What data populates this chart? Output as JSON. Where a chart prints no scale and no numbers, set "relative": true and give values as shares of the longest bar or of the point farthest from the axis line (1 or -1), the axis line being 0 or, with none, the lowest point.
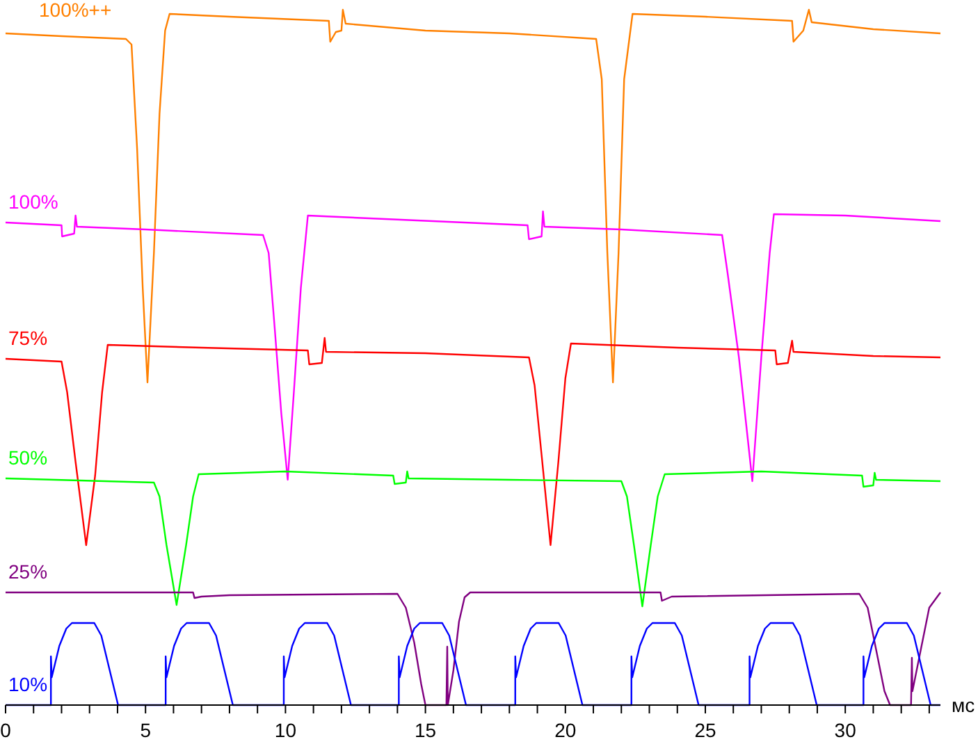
{
  "chart_data": {
    "type": "line",
    "relative": true,
    "xlabel": "мс",
    "xlim": [
      0,
      33.4
    ],
    "xticks": [
      0,
      {
        "value": 1,
        "label": null
      },
      {
        "value": 2,
        "label": null
      },
      {
        "value": 3,
        "label": null
      },
      {
        "value": 4,
        "label": null
      },
      5,
      {
        "value": 6,
        "label": null
      },
      {
        "value": 7,
        "label": null
      },
      {
        "value": 8,
        "label": null
      },
      {
        "value": 9,
        "label": null
      },
      10,
      {
        "value": 11,
        "label": null
      },
      {
        "value": 12,
        "label": null
      },
      {
        "value": 13,
        "label": null
      },
      {
        "value": 14,
        "label": null
      },
      15,
      {
        "value": 16,
        "label": null
      },
      {
        "value": 17,
        "label": null
      },
      {
        "value": 18,
        "label": null
      },
      {
        "value": 19,
        "label": null
      },
      20,
      {
        "value": 21,
        "label": null
      },
      {
        "value": 22,
        "label": null
      },
      {
        "value": 23,
        "label": null
      },
      {
        "value": 24,
        "label": null
      },
      25,
      {
        "value": 26,
        "label": null
      },
      {
        "value": 27,
        "label": null
      },
      {
        "value": 28,
        "label": null
      },
      {
        "value": 29,
        "label": null
      },
      30,
      {
        "value": 31,
        "label": null
      },
      {
        "value": 32,
        "label": null
      },
      {
        "value": 33,
        "label": null
      }
    ],
    "grid": false,
    "legend": false,
    "marker": "none",
    "line_style": "solid",
    "series": [
      {
        "name": "100%++",
        "color": "#ff8000",
        "x": [
          0,
          2,
          4.3,
          4.5,
          4.7,
          4.9,
          5.07,
          5.3,
          5.5,
          5.7,
          5.86,
          8,
          11.55,
          11.6,
          11.8,
          12.0,
          12.05,
          12.15,
          15,
          18,
          21.1,
          21.3,
          21.5,
          21.7,
          21.9,
          22.1,
          22.4,
          25,
          28.1,
          28.15,
          28.5,
          28.7,
          28.8,
          31,
          33.4
        ],
        "values": [
          0.966,
          0.962,
          0.958,
          0.95,
          0.8,
          0.6,
          0.464,
          0.65,
          0.85,
          0.97,
          0.994,
          0.99,
          0.984,
          0.954,
          0.968,
          0.97,
          1.0,
          0.98,
          0.97,
          0.966,
          0.958,
          0.9,
          0.65,
          0.464,
          0.65,
          0.9,
          0.994,
          0.99,
          0.984,
          0.954,
          0.97,
          1.0,
          0.982,
          0.972,
          0.966
        ]
      },
      {
        "name": "100%",
        "color": "#ff00ff",
        "x": [
          0,
          2.0,
          2.02,
          2.45,
          2.5,
          2.55,
          5,
          9.2,
          9.4,
          9.6,
          9.85,
          10.08,
          10.3,
          10.55,
          10.8,
          13,
          18.65,
          18.7,
          19.15,
          19.2,
          19.25,
          22,
          25.6,
          25.8,
          26.2,
          26.68,
          27.0,
          27.3,
          27.45,
          30,
          33.4
        ],
        "values": [
          0.694,
          0.69,
          0.674,
          0.678,
          0.704,
          0.688,
          0.684,
          0.676,
          0.65,
          0.55,
          0.42,
          0.324,
          0.45,
          0.6,
          0.704,
          0.7,
          0.69,
          0.67,
          0.674,
          0.71,
          0.688,
          0.684,
          0.676,
          0.62,
          0.5,
          0.322,
          0.5,
          0.65,
          0.706,
          0.704,
          0.696
        ]
      },
      {
        "name": "75%",
        "color": "#ff0000",
        "x": [
          0,
          2.0,
          2.2,
          2.5,
          2.88,
          3.2,
          3.45,
          3.65,
          7,
          10.8,
          10.85,
          11.3,
          11.4,
          11.45,
          15,
          18.7,
          18.9,
          19.15,
          19.47,
          19.75,
          20,
          20.2,
          24,
          27.5,
          27.55,
          27.95,
          28.1,
          28.15,
          31,
          33.4
        ],
        "values": [
          0.498,
          0.494,
          0.45,
          0.35,
          0.23,
          0.33,
          0.45,
          0.518,
          0.514,
          0.51,
          0.49,
          0.492,
          0.528,
          0.508,
          0.506,
          0.5,
          0.46,
          0.36,
          0.23,
          0.35,
          0.47,
          0.52,
          0.514,
          0.51,
          0.49,
          0.492,
          0.524,
          0.508,
          0.502,
          0.5
        ]
      },
      {
        "name": "50%",
        "color": "#00ff00",
        "x": [
          0,
          5.3,
          5.5,
          5.75,
          6.11,
          6.45,
          6.7,
          6.9,
          10,
          13.85,
          13.9,
          14.3,
          14.35,
          14.4,
          18,
          22.0,
          22.2,
          22.45,
          22.75,
          23.05,
          23.3,
          23.55,
          27,
          30.6,
          30.65,
          31.0,
          31.05,
          31.1,
          33.4
        ],
        "values": [
          0.326,
          0.32,
          0.3,
          0.23,
          0.144,
          0.23,
          0.3,
          0.332,
          0.336,
          0.33,
          0.318,
          0.32,
          0.336,
          0.326,
          0.324,
          0.322,
          0.3,
          0.23,
          0.142,
          0.23,
          0.3,
          0.332,
          0.336,
          0.33,
          0.314,
          0.316,
          0.334,
          0.324,
          0.322
        ]
      },
      {
        "name": "25%",
        "color": "#800080",
        "x": [
          0,
          6.7,
          6.75,
          7,
          8,
          14.0,
          14.3,
          14.6,
          14.85,
          15.0,
          15.75,
          15.78,
          15.8,
          16.0,
          16.2,
          16.4,
          16.6,
          23.4,
          23.45,
          23.8,
          30.5,
          30.8,
          31.1,
          31.4,
          31.6,
          32.35,
          32.38,
          32.4,
          32.7,
          33.0,
          33.4
        ],
        "values": [
          0.162,
          0.162,
          0.154,
          0.156,
          0.158,
          0.16,
          0.14,
          0.09,
          0.03,
          0,
          0,
          0.084,
          0,
          0.05,
          0.12,
          0.155,
          0.162,
          0.162,
          0.15,
          0.156,
          0.16,
          0.14,
          0.08,
          0.02,
          0,
          0,
          0.068,
          0.02,
          0.08,
          0.14,
          0.162
        ]
      },
      {
        "name": "10%",
        "color": "#0000ff",
        "x": [
          0,
          1.62,
          1.62,
          1.65,
          1.92,
          2.17,
          2.37,
          3.17,
          3.42,
          3.72,
          4.02,
          5.72,
          5.72,
          5.75,
          6.02,
          6.27,
          6.47,
          7.27,
          7.52,
          7.82,
          8.12,
          9.94,
          9.94,
          9.97,
          10.24,
          10.49,
          10.69,
          11.49,
          11.74,
          12.04,
          12.34,
          14.05,
          14.05,
          14.08,
          14.35,
          14.6,
          14.8,
          15.6,
          15.85,
          16.15,
          16.45,
          18.21,
          18.21,
          18.24,
          18.51,
          18.76,
          18.96,
          19.76,
          20.01,
          20.31,
          20.61,
          22.36,
          22.36,
          22.39,
          22.66,
          22.91,
          23.11,
          23.91,
          24.16,
          24.46,
          24.76,
          26.58,
          26.58,
          26.61,
          26.88,
          27.13,
          27.33,
          28.13,
          28.38,
          28.68,
          28.98,
          30.65,
          30.65,
          30.68,
          30.95,
          31.2,
          31.4,
          32.2,
          32.45,
          32.75,
          33.05,
          33.4
        ],
        "values": [
          0,
          0,
          0.07,
          0.04,
          0.085,
          0.11,
          0.118,
          0.118,
          0.1,
          0.05,
          0,
          0,
          0.07,
          0.04,
          0.085,
          0.11,
          0.118,
          0.118,
          0.1,
          0.05,
          0,
          0,
          0.07,
          0.04,
          0.085,
          0.11,
          0.118,
          0.118,
          0.1,
          0.05,
          0,
          0,
          0.07,
          0.04,
          0.085,
          0.11,
          0.118,
          0.118,
          0.1,
          0.05,
          0,
          0,
          0.07,
          0.04,
          0.085,
          0.11,
          0.118,
          0.118,
          0.1,
          0.05,
          0,
          0,
          0.07,
          0.04,
          0.085,
          0.11,
          0.118,
          0.118,
          0.1,
          0.05,
          0,
          0,
          0.07,
          0.04,
          0.085,
          0.11,
          0.118,
          0.118,
          0.1,
          0.05,
          0,
          0,
          0.07,
          0.04,
          0.085,
          0.11,
          0.118,
          0.118,
          0.1,
          0.05,
          0,
          0
        ]
      }
    ]
  }
}
